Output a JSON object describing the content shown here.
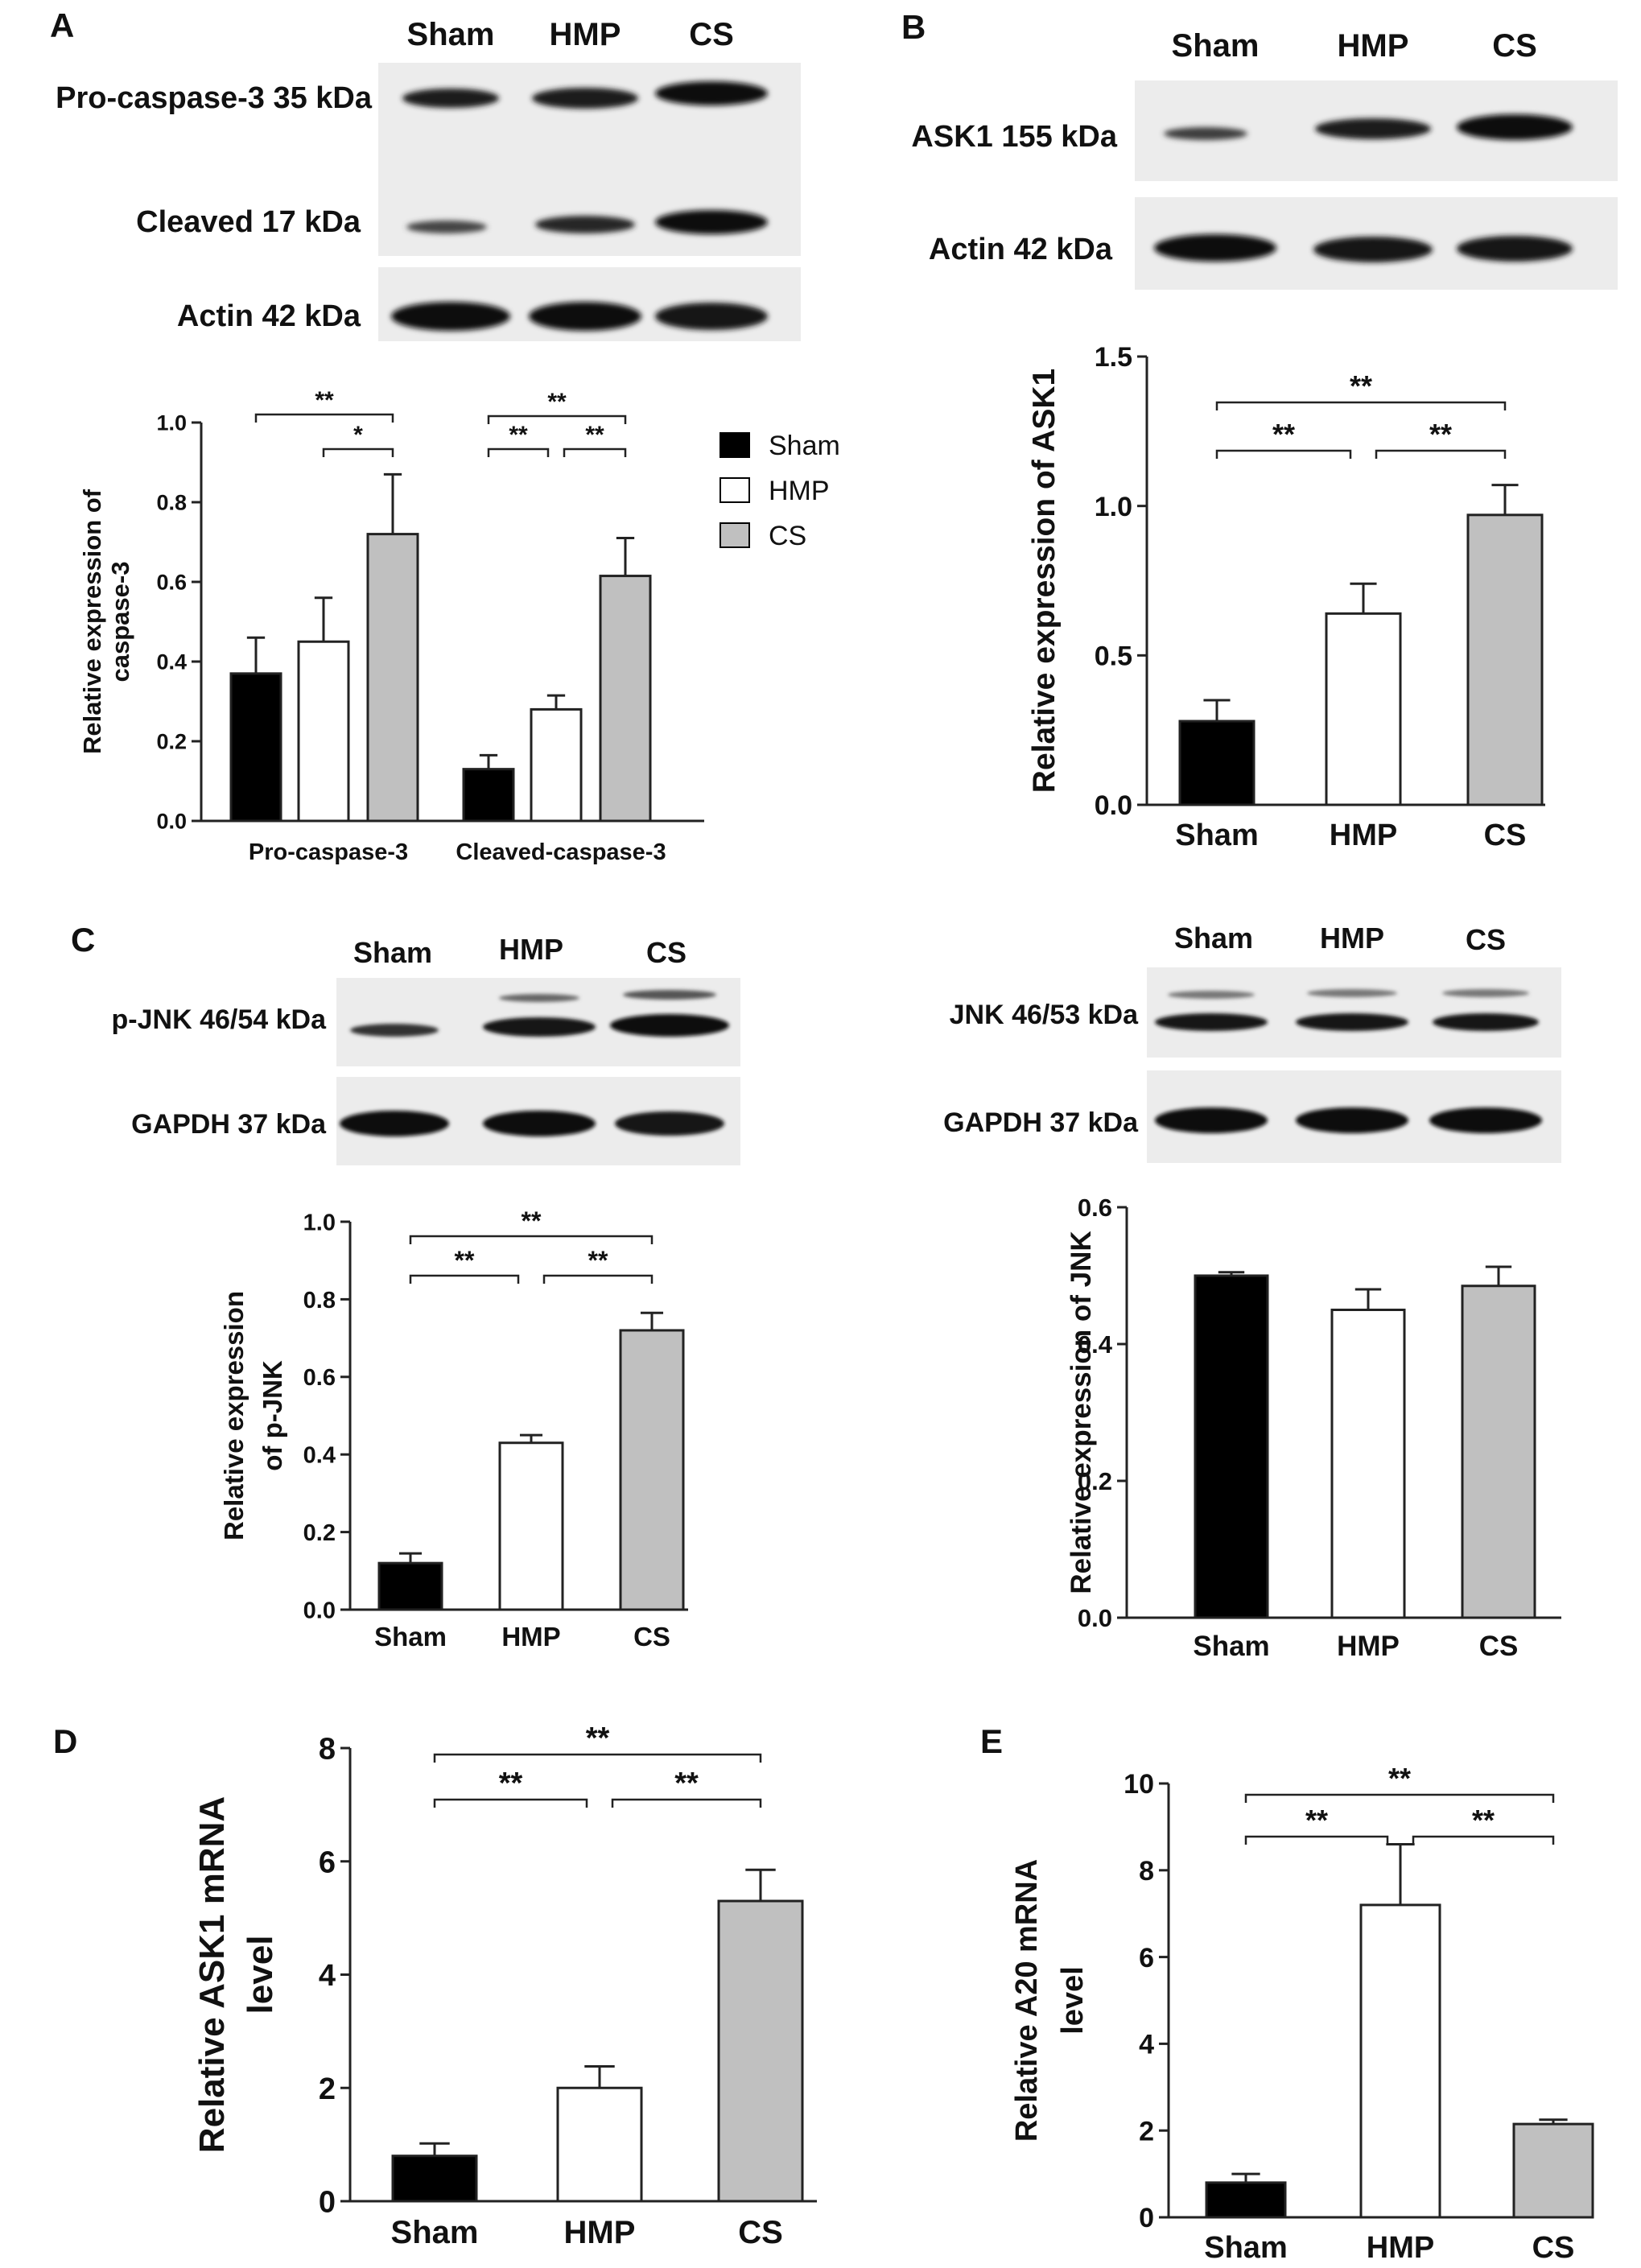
{
  "colors": {
    "Sham": "#000000",
    "HMP": "#ffffff",
    "CS": "#c0c0c0"
  },
  "panels": {
    "A": {
      "letter": "A",
      "blot": {
        "lanes": [
          "Sham",
          "HMP",
          "CS"
        ],
        "rows": [
          "Pro-caspase-3 35 kDa",
          "Cleaved 17 kDa",
          "Actin 42 kDa"
        ]
      },
      "legend": [
        "Sham",
        "HMP",
        "CS"
      ]
    },
    "B": {
      "letter": "B",
      "blot": {
        "lanes": [
          "Sham",
          "HMP",
          "CS"
        ],
        "rows": [
          "ASK1 155 kDa",
          "Actin 42 kDa"
        ]
      }
    },
    "C": {
      "letter": "C",
      "blot_left": {
        "lanes": [
          "Sham",
          "HMP",
          "CS"
        ],
        "rows": [
          "p-JNK 46/54 kDa",
          "GAPDH 37 kDa"
        ]
      },
      "blot_right": {
        "lanes": [
          "Sham",
          "HMP",
          "CS"
        ],
        "rows": [
          "JNK 46/53 kDa",
          "GAPDH 37 kDa"
        ]
      }
    },
    "D": {
      "letter": "D"
    },
    "E": {
      "letter": "E"
    }
  },
  "chart_data": [
    {
      "id": "A",
      "type": "bar",
      "categories": [
        "Pro-caspase-3",
        "Cleaved-caspase-3"
      ],
      "series": [
        {
          "name": "Sham",
          "values": [
            0.37,
            0.13
          ],
          "errors": [
            0.09,
            0.035
          ]
        },
        {
          "name": "HMP",
          "values": [
            0.45,
            0.28
          ],
          "errors": [
            0.11,
            0.035
          ]
        },
        {
          "name": "CS",
          "values": [
            0.72,
            0.615
          ],
          "errors": [
            0.15,
            0.095
          ]
        }
      ],
      "ylabel": "Relative expression of\ncaspase-3",
      "ylim": [
        0,
        1.0
      ],
      "yticks": [
        "0.0",
        "0.2",
        "0.4",
        "0.6",
        "0.8",
        "1.0"
      ],
      "legend_position": "right",
      "significance": [
        {
          "from": [
            "Pro-caspase-3",
            "Sham"
          ],
          "to": [
            "Pro-caspase-3",
            "CS"
          ],
          "label": "**"
        },
        {
          "from": [
            "Pro-caspase-3",
            "HMP"
          ],
          "to": [
            "Pro-caspase-3",
            "CS"
          ],
          "label": "*"
        },
        {
          "from": [
            "Cleaved-caspase-3",
            "Sham"
          ],
          "to": [
            "Cleaved-caspase-3",
            "CS"
          ],
          "label": "**"
        },
        {
          "from": [
            "Cleaved-caspase-3",
            "Sham"
          ],
          "to": [
            "Cleaved-caspase-3",
            "HMP"
          ],
          "label": "**"
        },
        {
          "from": [
            "Cleaved-caspase-3",
            "HMP"
          ],
          "to": [
            "Cleaved-caspase-3",
            "CS"
          ],
          "label": "**"
        }
      ]
    },
    {
      "id": "B",
      "type": "bar",
      "categories": [
        "Sham",
        "HMP",
        "CS"
      ],
      "values": [
        0.28,
        0.64,
        0.97
      ],
      "errors": [
        0.07,
        0.1,
        0.1
      ],
      "ylabel": "Relative expression of ASK1",
      "ylim": [
        0,
        1.5
      ],
      "yticks": [
        "0.0",
        "0.5",
        "1.0",
        "1.5"
      ],
      "significance": [
        {
          "from": "Sham",
          "to": "HMP",
          "label": "**"
        },
        {
          "from": "HMP",
          "to": "CS",
          "label": "**"
        },
        {
          "from": "Sham",
          "to": "CS",
          "label": "**"
        }
      ]
    },
    {
      "id": "C-left",
      "type": "bar",
      "categories": [
        "Sham",
        "HMP",
        "CS"
      ],
      "values": [
        0.12,
        0.43,
        0.72
      ],
      "errors": [
        0.025,
        0.02,
        0.045
      ],
      "ylabel": "Relative expression\nof p-JNK",
      "ylim": [
        0,
        1.0
      ],
      "yticks": [
        "0.0",
        "0.2",
        "0.4",
        "0.6",
        "0.8",
        "1.0"
      ],
      "significance": [
        {
          "from": "Sham",
          "to": "HMP",
          "label": "**"
        },
        {
          "from": "HMP",
          "to": "CS",
          "label": "**"
        },
        {
          "from": "Sham",
          "to": "CS",
          "label": "**"
        }
      ]
    },
    {
      "id": "C-right",
      "type": "bar",
      "categories": [
        "Sham",
        "HMP",
        "CS"
      ],
      "values": [
        0.5,
        0.45,
        0.485
      ],
      "errors": [
        0.005,
        0.03,
        0.028
      ],
      "ylabel": "Relative expression of JNK",
      "ylim": [
        0,
        0.6
      ],
      "yticks": [
        "0.0",
        "0.2",
        "0.4",
        "0.6"
      ],
      "significance": []
    },
    {
      "id": "D",
      "type": "bar",
      "categories": [
        "Sham",
        "HMP",
        "CS"
      ],
      "values": [
        0.8,
        2.0,
        5.3
      ],
      "errors": [
        0.22,
        0.38,
        0.55
      ],
      "ylabel": "Relative ASK1 mRNA\nlevel",
      "ylim": [
        0,
        8
      ],
      "yticks": [
        "0",
        "2",
        "4",
        "6",
        "8"
      ],
      "significance": [
        {
          "from": "Sham",
          "to": "HMP",
          "label": "**"
        },
        {
          "from": "HMP",
          "to": "CS",
          "label": "**"
        },
        {
          "from": "Sham",
          "to": "CS",
          "label": "**"
        }
      ]
    },
    {
      "id": "E",
      "type": "bar",
      "categories": [
        "Sham",
        "HMP",
        "CS"
      ],
      "values": [
        0.8,
        7.2,
        2.15
      ],
      "errors": [
        0.2,
        1.4,
        0.1
      ],
      "ylabel": "Relative A20 mRNA\nlevel",
      "ylim": [
        0,
        10
      ],
      "yticks": [
        "0",
        "2",
        "4",
        "6",
        "8",
        "10"
      ],
      "significance": [
        {
          "from": "Sham",
          "to": "HMP",
          "label": "**"
        },
        {
          "from": "HMP",
          "to": "CS",
          "label": "**"
        },
        {
          "from": "Sham",
          "to": "CS",
          "label": "**"
        }
      ]
    }
  ]
}
